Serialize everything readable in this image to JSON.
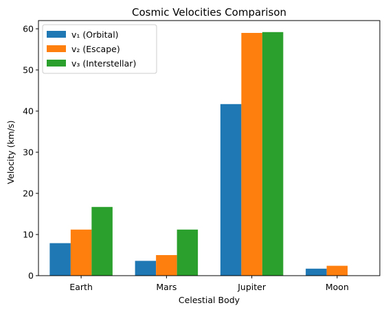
{
  "chart_data": {
    "type": "bar",
    "title": "Cosmic Velocities Comparison",
    "xlabel": "Celestial Body",
    "ylabel": "Velocity (km/s)",
    "categories": [
      "Earth",
      "Mars",
      "Jupiter",
      "Moon"
    ],
    "series": [
      {
        "name": "v₁ (Orbital)",
        "color": "#1f77b4",
        "values": [
          7.9,
          3.6,
          41.7,
          1.7
        ]
      },
      {
        "name": "v₂ (Escape)",
        "color": "#ff7f0e",
        "values": [
          11.2,
          5.0,
          59.0,
          2.4
        ]
      },
      {
        "name": "v₃ (Interstellar)",
        "color": "#2ca02c",
        "values": [
          16.7,
          11.2,
          59.2,
          0
        ]
      }
    ],
    "ylim": [
      0,
      62
    ],
    "yticks": [
      0,
      10,
      20,
      30,
      40,
      50,
      60
    ],
    "grid": false,
    "legend": "top-left"
  }
}
